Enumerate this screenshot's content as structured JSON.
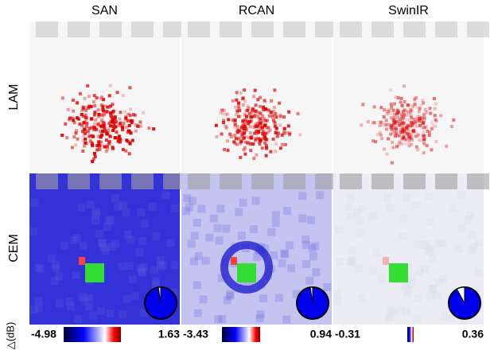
{
  "columns": [
    "SAN",
    "RCAN",
    "SwinIR"
  ],
  "rows": [
    "LAM",
    "CEM"
  ],
  "delta_label": "△(dB)",
  "colorbars": [
    {
      "min": "-4.98",
      "max": "1.63"
    },
    {
      "min": "-3.43",
      "max": "0.94"
    },
    {
      "min": "-0.31",
      "max": "0.36"
    }
  ]
}
